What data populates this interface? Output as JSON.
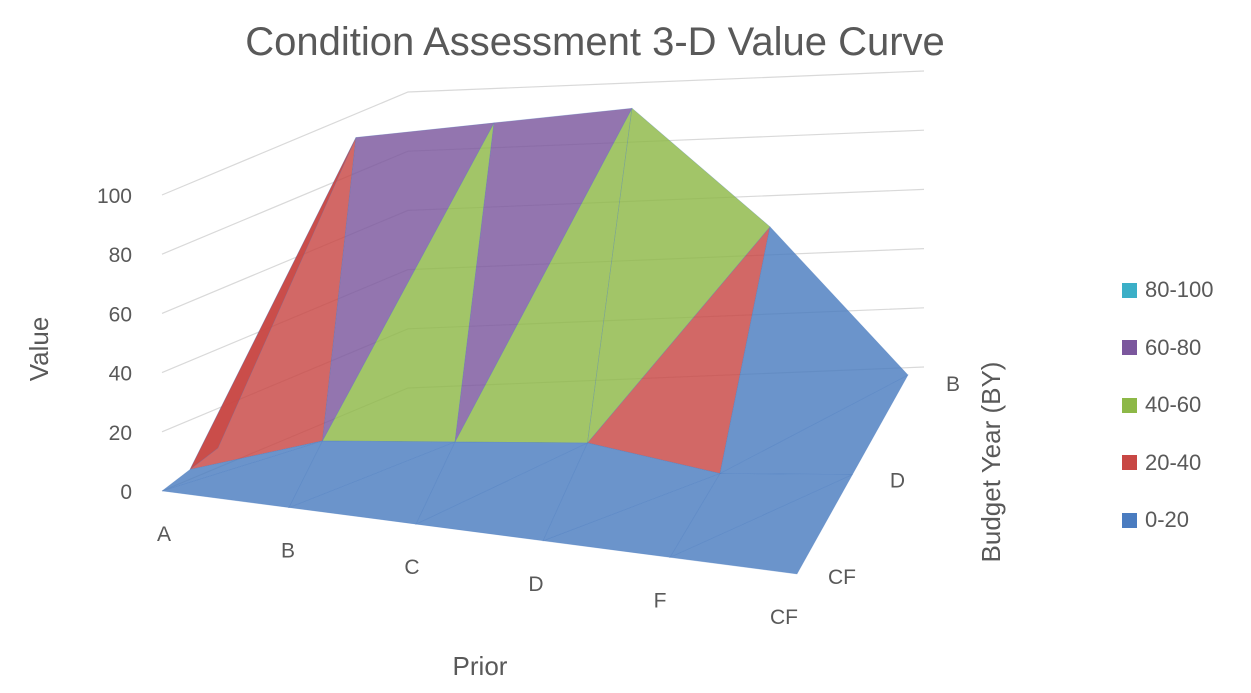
{
  "chart_data": {
    "type": "surface",
    "title": "Condition Assessment 3-D Value Curve",
    "x_label": "Prior",
    "y_label": "Budget Year (BY)",
    "z_label": "Value",
    "x_categories": [
      "A",
      "B",
      "C",
      "D",
      "F",
      "CF"
    ],
    "y_categories": [
      "CF",
      "D",
      "B"
    ],
    "z_ticks": [
      "0",
      "20",
      "40",
      "60",
      "80",
      "100"
    ],
    "zlim": [
      0,
      100
    ],
    "values": [
      [
        0,
        0,
        0,
        0,
        0,
        0
      ],
      [
        0,
        10,
        10,
        10,
        0,
        0
      ],
      [
        0,
        100,
        100,
        100,
        55,
        0
      ]
    ],
    "legend": [
      {
        "label": "80-100",
        "color": "#3BAFC7"
      },
      {
        "label": "60-80",
        "color": "#7B579D"
      },
      {
        "label": "40-60",
        "color": "#8DB847"
      },
      {
        "label": "20-40",
        "color": "#C84744"
      },
      {
        "label": "0-20",
        "color": "#4A7CC0"
      }
    ]
  }
}
